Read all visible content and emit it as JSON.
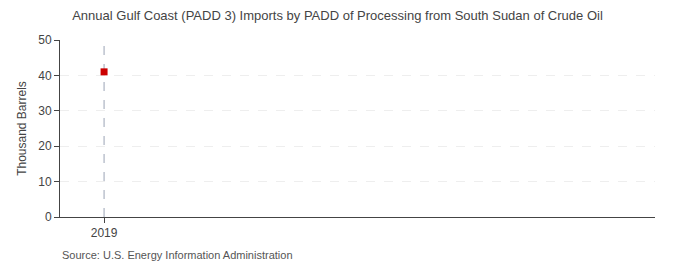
{
  "chart_data": {
    "type": "scatter",
    "title": "Annual Gulf Coast (PADD 3) Imports by PADD of Processing from South Sudan of Crude Oil",
    "ylabel": "Thousand Barrels",
    "annotations": [
      "Source: U.S. Energy Information Administration"
    ],
    "x": [
      2019
    ],
    "values": [
      41
    ],
    "color": "#cc0000",
    "marker": "square",
    "xlim": [
      2018.6,
      2024.0
    ],
    "ylim": [
      0,
      50
    ],
    "xticks": [
      2019
    ],
    "yticks": [
      0,
      10,
      20,
      30,
      40,
      50
    ],
    "grid": "y"
  }
}
